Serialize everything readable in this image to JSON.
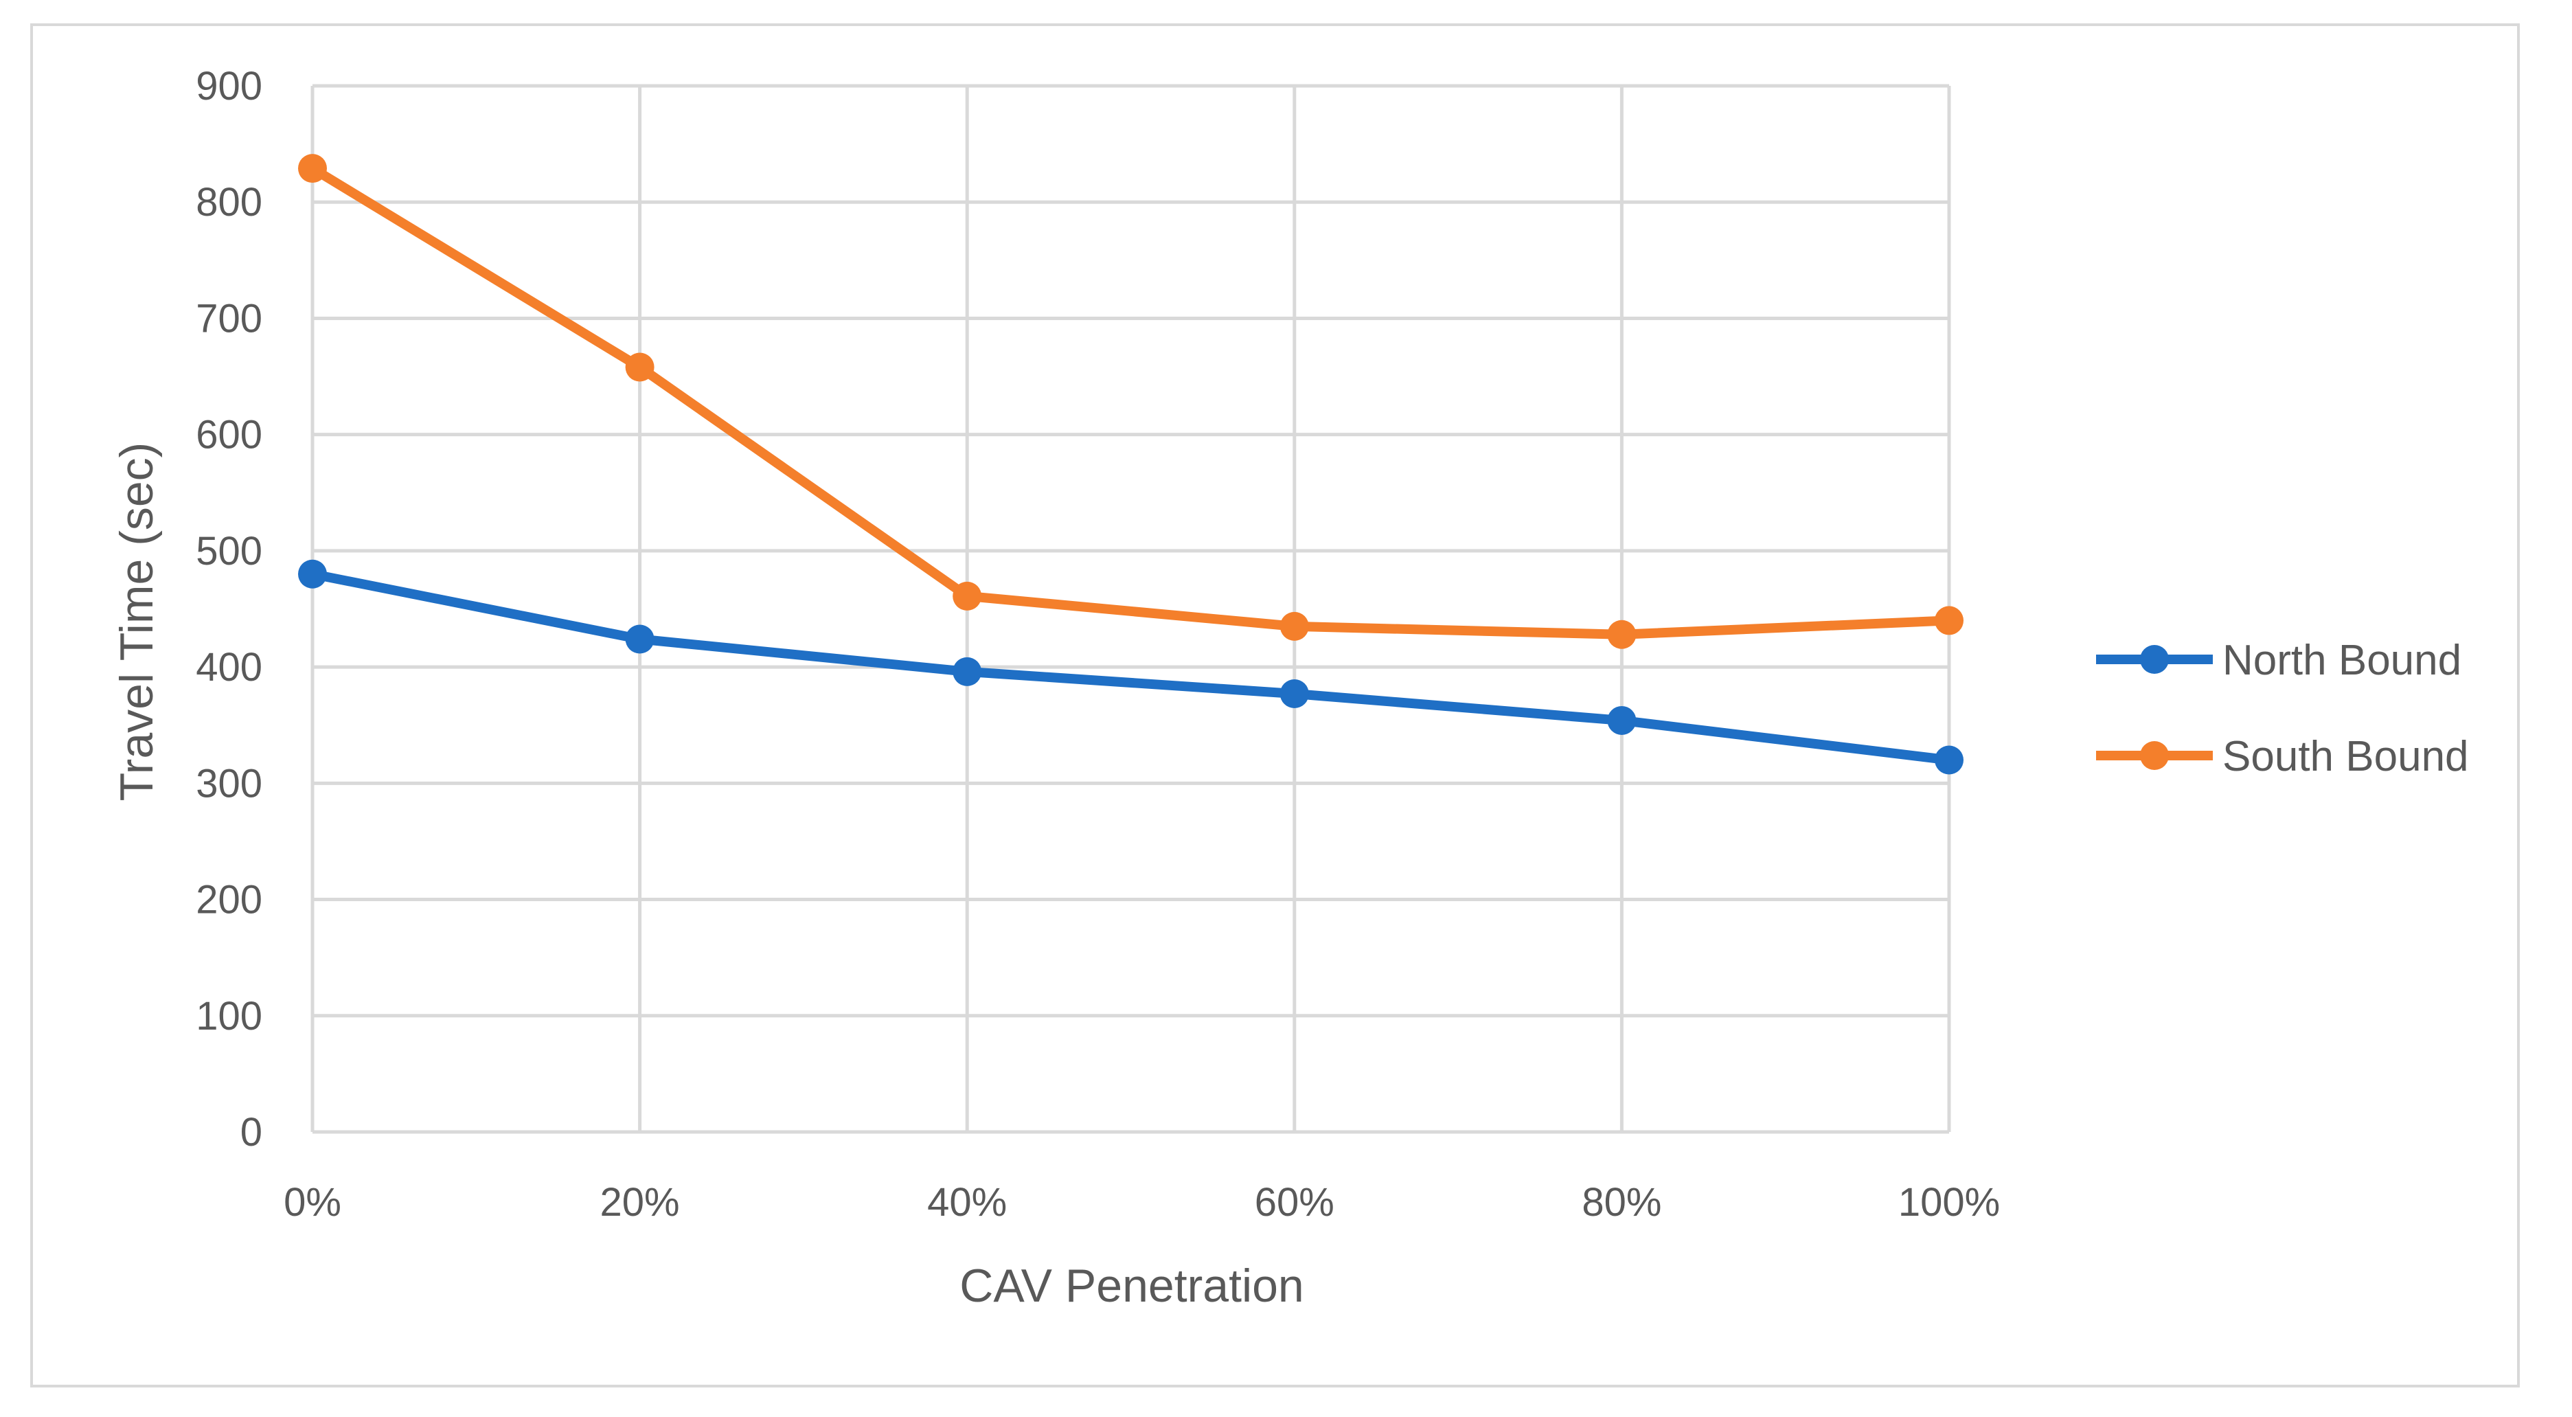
{
  "chart_data": {
    "type": "line",
    "title": "",
    "xlabel": "CAV Penetration",
    "ylabel": "Travel Time (sec)",
    "categories": [
      "0%",
      "20%",
      "40%",
      "60%",
      "80%",
      "100%"
    ],
    "ylim": [
      0,
      900
    ],
    "yticks": [
      0,
      100,
      200,
      300,
      400,
      500,
      600,
      700,
      800,
      900
    ],
    "grid": true,
    "legend_position": "right",
    "series": [
      {
        "name": "North Bound",
        "color": "#1f6fc5",
        "values": [
          480,
          424,
          396,
          377,
          354,
          320
        ]
      },
      {
        "name": "South Bound",
        "color": "#f47f2b",
        "values": [
          829,
          658,
          461,
          435,
          428,
          440
        ]
      }
    ]
  }
}
